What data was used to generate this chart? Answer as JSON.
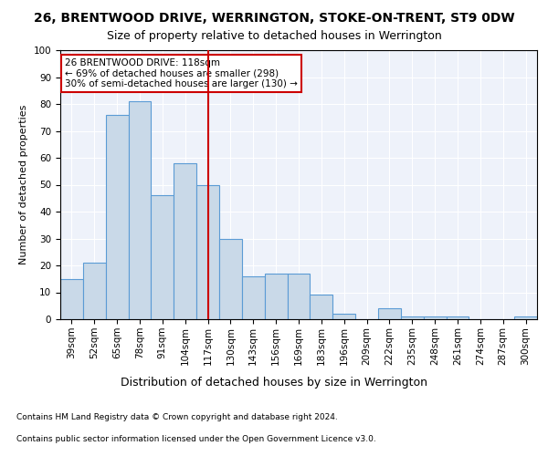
{
  "title1": "26, BRENTWOOD DRIVE, WERRINGTON, STOKE-ON-TRENT, ST9 0DW",
  "title2": "Size of property relative to detached houses in Werrington",
  "xlabel": "Distribution of detached houses by size in Werrington",
  "ylabel": "Number of detached properties",
  "categories": [
    "39sqm",
    "52sqm",
    "65sqm",
    "78sqm",
    "91sqm",
    "104sqm",
    "117sqm",
    "130sqm",
    "143sqm",
    "156sqm",
    "169sqm",
    "183sqm",
    "196sqm",
    "209sqm",
    "222sqm",
    "235sqm",
    "248sqm",
    "261sqm",
    "274sqm",
    "287sqm",
    "300sqm"
  ],
  "values": [
    15,
    21,
    76,
    81,
    46,
    58,
    50,
    30,
    16,
    17,
    17,
    9,
    2,
    0,
    4,
    1,
    1,
    1,
    0,
    0,
    1
  ],
  "bar_color": "#c9d9e8",
  "bar_edge_color": "#5b9bd5",
  "vline_x": 6,
  "vline_color": "#cc0000",
  "annotation_text": "26 BRENTWOOD DRIVE: 118sqm\n← 69% of detached houses are smaller (298)\n30% of semi-detached houses are larger (130) →",
  "annotation_box_color": "#ffffff",
  "annotation_box_edge": "#cc0000",
  "footnote1": "Contains HM Land Registry data © Crown copyright and database right 2024.",
  "footnote2": "Contains public sector information licensed under the Open Government Licence v3.0.",
  "ylim": [
    0,
    100
  ],
  "title1_fontsize": 10,
  "title2_fontsize": 9,
  "xlabel_fontsize": 9,
  "ylabel_fontsize": 8,
  "tick_fontsize": 7.5,
  "annotation_fontsize": 7.5,
  "footnote_fontsize": 6.5,
  "bg_color": "#eef2fa"
}
